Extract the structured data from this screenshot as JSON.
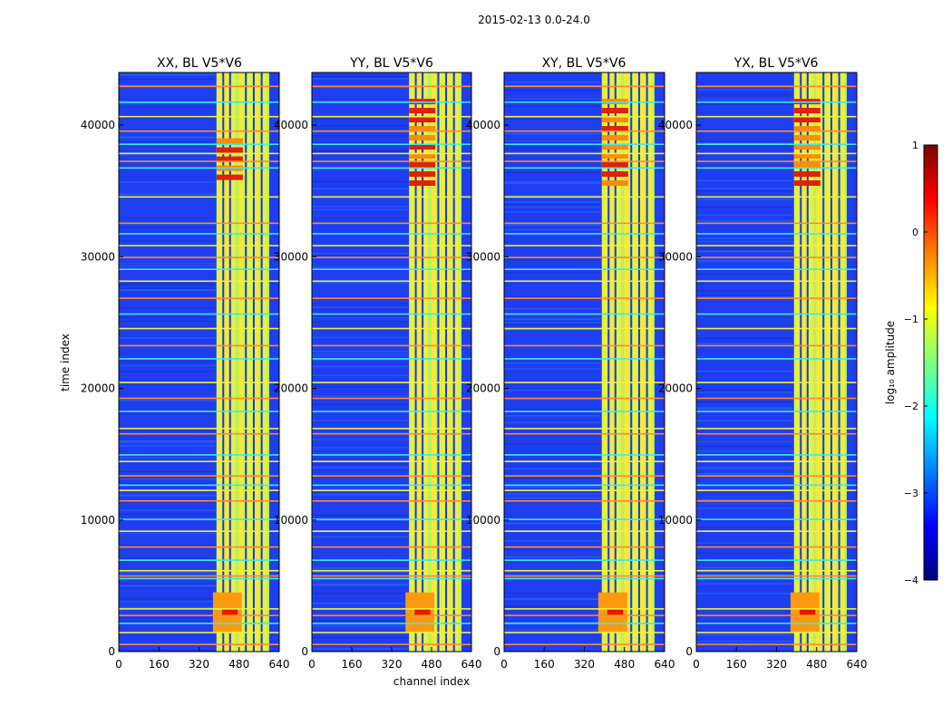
{
  "suptitle": "2015-02-13 0.0-24.0",
  "chart_data": [
    {
      "type": "heatmap",
      "title": "XX, BL V5*V6",
      "xlabel": "",
      "ylabel": "time index",
      "xlim": [
        0,
        640
      ],
      "ylim": [
        0,
        44000
      ],
      "xticks": [
        "0",
        "160",
        "320",
        "480",
        "640"
      ],
      "yticks": [
        "0",
        "10000",
        "20000",
        "30000",
        "40000"
      ],
      "active_band": [
        390,
        600
      ],
      "high_rows_top": [
        36000,
        39000
      ],
      "high_rows_bottom": [
        1500,
        4500
      ]
    },
    {
      "type": "heatmap",
      "title": "YY, BL V5*V6",
      "xlabel": "channel index",
      "ylabel": "",
      "xlim": [
        0,
        640
      ],
      "ylim": [
        0,
        44000
      ],
      "xticks": [
        "0",
        "160",
        "320",
        "480",
        "640"
      ],
      "yticks": [
        "0",
        "10000",
        "20000",
        "30000",
        "40000"
      ],
      "active_band": [
        390,
        600
      ],
      "high_rows_top": [
        35500,
        42000
      ],
      "high_rows_bottom": [
        1500,
        4500
      ]
    },
    {
      "type": "heatmap",
      "title": "XY, BL V5*V6",
      "xlabel": "",
      "ylabel": "",
      "xlim": [
        0,
        640
      ],
      "ylim": [
        0,
        44000
      ],
      "xticks": [
        "0",
        "160",
        "320",
        "480",
        "640"
      ],
      "yticks": [
        "0",
        "10000",
        "20000",
        "30000",
        "40000"
      ],
      "active_band": [
        390,
        600
      ],
      "high_rows_top": [
        35500,
        42000
      ],
      "high_rows_bottom": [
        1500,
        4500
      ]
    },
    {
      "type": "heatmap",
      "title": "YX, BL V5*V6",
      "xlabel": "",
      "ylabel": "",
      "xlim": [
        0,
        640
      ],
      "ylim": [
        0,
        44000
      ],
      "xticks": [
        "0",
        "160",
        "320",
        "480",
        "640"
      ],
      "yticks": [
        "0",
        "10000",
        "20000",
        "30000",
        "40000"
      ],
      "active_band": [
        390,
        600
      ],
      "high_rows_top": [
        35500,
        42000
      ],
      "high_rows_bottom": [
        1500,
        4500
      ]
    }
  ],
  "colorbar": {
    "label": "log₁₀ amplitude",
    "range": [
      -4,
      1
    ],
    "ticks": [
      "1",
      "0",
      "−1",
      "−2",
      "−3",
      "−4"
    ],
    "colors": [
      "#7f0000",
      "#ff0000",
      "#ff8000",
      "#ffff00",
      "#80ff80",
      "#00ffff",
      "#0080ff",
      "#0000ff",
      "#00007f"
    ]
  },
  "horizontal_lines": [
    600,
    1500,
    2200,
    2800,
    3300,
    5600,
    5800,
    6200,
    7000,
    8000,
    9200,
    10100,
    11500,
    12300,
    12700,
    13400,
    14500,
    15000,
    16600,
    17000,
    18300,
    19300,
    20500,
    22300,
    23300,
    24600,
    25700,
    26900,
    28200,
    29100,
    30000,
    30900,
    31800,
    32600,
    34600,
    36800,
    37300,
    37900,
    38600,
    39600,
    40700,
    41800,
    43000
  ]
}
